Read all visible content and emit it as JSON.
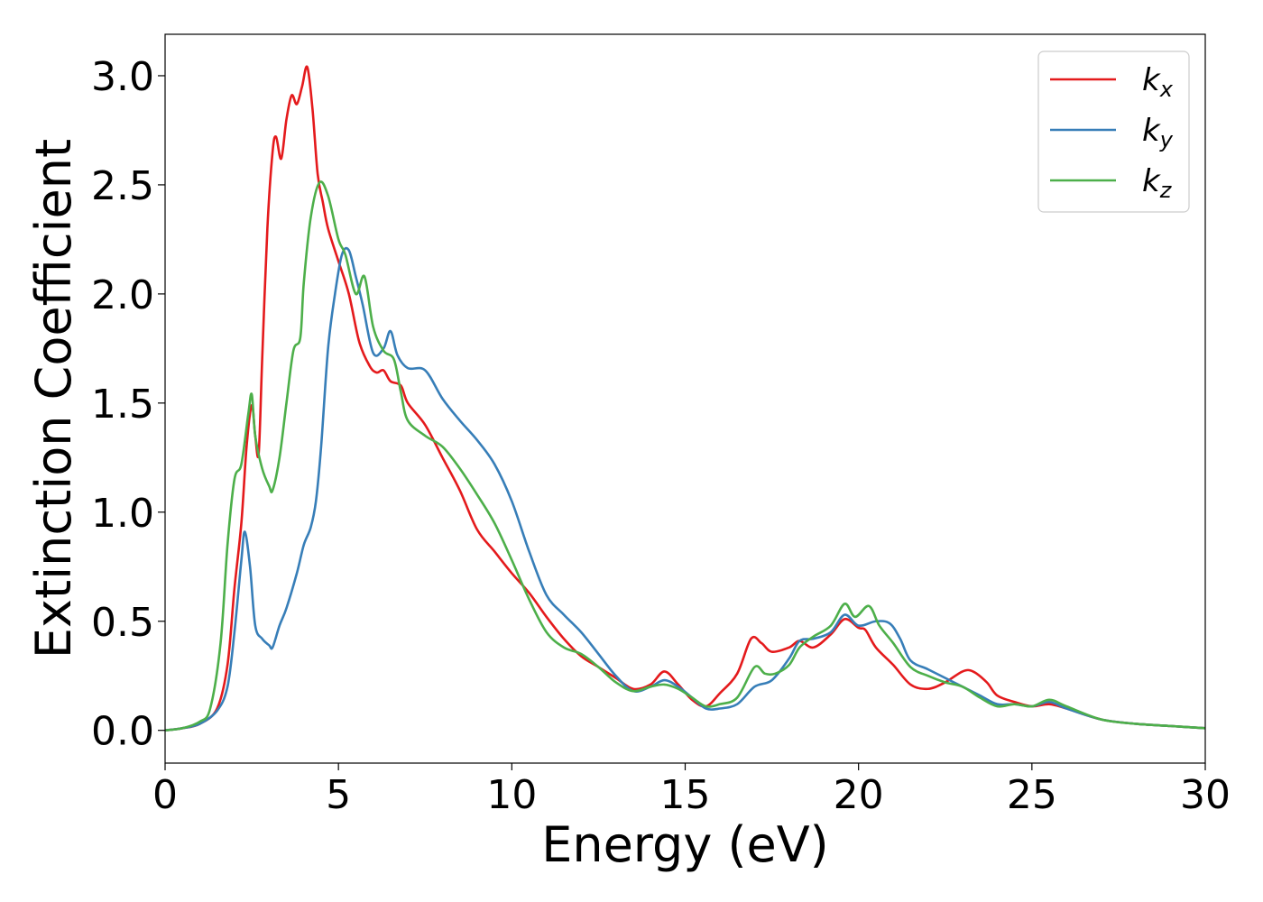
{
  "chart_data": {
    "type": "line",
    "title": "",
    "xlabel": "Energy (eV)",
    "ylabel": "Extinction Coefficient",
    "xlim": [
      0,
      30
    ],
    "ylim": [
      -0.15,
      3.19
    ],
    "xticks": [
      0,
      5,
      10,
      15,
      20,
      25,
      30
    ],
    "xtick_labels": [
      "0",
      "5",
      "10",
      "15",
      "20",
      "25",
      "30"
    ],
    "yticks": [
      0.0,
      0.5,
      1.0,
      1.5,
      2.0,
      2.5,
      3.0
    ],
    "ytick_labels": [
      "0.0",
      "0.5",
      "1.0",
      "1.5",
      "2.0",
      "2.5",
      "3.0"
    ],
    "grid": false,
    "legend_position": "top-right",
    "series": [
      {
        "name": "k_x",
        "base": "k",
        "sub": "x",
        "color": "#e41a1c",
        "points": [
          [
            0,
            0.0
          ],
          [
            0.5,
            0.01
          ],
          [
            1.0,
            0.03
          ],
          [
            1.5,
            0.1
          ],
          [
            1.8,
            0.3
          ],
          [
            2.0,
            0.65
          ],
          [
            2.2,
            0.95
          ],
          [
            2.35,
            1.3
          ],
          [
            2.5,
            1.49
          ],
          [
            2.6,
            1.35
          ],
          [
            2.7,
            1.27
          ],
          [
            2.8,
            1.7
          ],
          [
            2.95,
            2.3
          ],
          [
            3.1,
            2.65
          ],
          [
            3.2,
            2.72
          ],
          [
            3.35,
            2.62
          ],
          [
            3.5,
            2.8
          ],
          [
            3.65,
            2.91
          ],
          [
            3.8,
            2.87
          ],
          [
            3.95,
            2.95
          ],
          [
            4.1,
            3.04
          ],
          [
            4.25,
            2.85
          ],
          [
            4.4,
            2.55
          ],
          [
            4.55,
            2.42
          ],
          [
            4.7,
            2.3
          ],
          [
            5.0,
            2.15
          ],
          [
            5.3,
            2.0
          ],
          [
            5.6,
            1.78
          ],
          [
            5.9,
            1.67
          ],
          [
            6.1,
            1.64
          ],
          [
            6.3,
            1.65
          ],
          [
            6.5,
            1.6
          ],
          [
            6.8,
            1.58
          ],
          [
            7.0,
            1.5
          ],
          [
            7.5,
            1.4
          ],
          [
            8.0,
            1.25
          ],
          [
            8.5,
            1.1
          ],
          [
            9.0,
            0.92
          ],
          [
            9.5,
            0.82
          ],
          [
            10.0,
            0.72
          ],
          [
            10.5,
            0.63
          ],
          [
            11.0,
            0.52
          ],
          [
            11.5,
            0.42
          ],
          [
            12.0,
            0.34
          ],
          [
            12.5,
            0.29
          ],
          [
            13.0,
            0.24
          ],
          [
            13.5,
            0.19
          ],
          [
            14.0,
            0.21
          ],
          [
            14.4,
            0.27
          ],
          [
            14.8,
            0.21
          ],
          [
            15.2,
            0.14
          ],
          [
            15.6,
            0.11
          ],
          [
            16.0,
            0.17
          ],
          [
            16.5,
            0.26
          ],
          [
            16.9,
            0.42
          ],
          [
            17.2,
            0.4
          ],
          [
            17.5,
            0.36
          ],
          [
            18.0,
            0.38
          ],
          [
            18.3,
            0.41
          ],
          [
            18.7,
            0.38
          ],
          [
            19.2,
            0.44
          ],
          [
            19.6,
            0.51
          ],
          [
            20.0,
            0.47
          ],
          [
            20.2,
            0.46
          ],
          [
            20.5,
            0.38
          ],
          [
            21.0,
            0.3
          ],
          [
            21.5,
            0.21
          ],
          [
            22.0,
            0.19
          ],
          [
            22.5,
            0.22
          ],
          [
            23.0,
            0.27
          ],
          [
            23.3,
            0.27
          ],
          [
            23.7,
            0.22
          ],
          [
            24.0,
            0.16
          ],
          [
            24.5,
            0.13
          ],
          [
            25.0,
            0.11
          ],
          [
            25.5,
            0.12
          ],
          [
            26.0,
            0.1
          ],
          [
            27.0,
            0.05
          ],
          [
            28.0,
            0.03
          ],
          [
            29.0,
            0.02
          ],
          [
            30.0,
            0.01
          ]
        ]
      },
      {
        "name": "k_y",
        "base": "k",
        "sub": "y",
        "color": "#377eb8",
        "points": [
          [
            0,
            0.0
          ],
          [
            0.5,
            0.01
          ],
          [
            1.0,
            0.03
          ],
          [
            1.5,
            0.09
          ],
          [
            1.8,
            0.2
          ],
          [
            2.0,
            0.45
          ],
          [
            2.2,
            0.78
          ],
          [
            2.3,
            0.91
          ],
          [
            2.45,
            0.75
          ],
          [
            2.6,
            0.48
          ],
          [
            2.8,
            0.42
          ],
          [
            3.0,
            0.39
          ],
          [
            3.1,
            0.38
          ],
          [
            3.3,
            0.48
          ],
          [
            3.5,
            0.56
          ],
          [
            3.8,
            0.72
          ],
          [
            4.0,
            0.85
          ],
          [
            4.2,
            0.93
          ],
          [
            4.35,
            1.05
          ],
          [
            4.5,
            1.3
          ],
          [
            4.7,
            1.75
          ],
          [
            4.9,
            2.0
          ],
          [
            5.1,
            2.18
          ],
          [
            5.3,
            2.2
          ],
          [
            5.5,
            2.08
          ],
          [
            5.7,
            1.95
          ],
          [
            6.0,
            1.73
          ],
          [
            6.3,
            1.75
          ],
          [
            6.5,
            1.83
          ],
          [
            6.7,
            1.72
          ],
          [
            7.0,
            1.66
          ],
          [
            7.5,
            1.65
          ],
          [
            8.0,
            1.52
          ],
          [
            8.5,
            1.42
          ],
          [
            9.0,
            1.33
          ],
          [
            9.5,
            1.22
          ],
          [
            10.0,
            1.05
          ],
          [
            10.5,
            0.82
          ],
          [
            11.0,
            0.62
          ],
          [
            11.5,
            0.53
          ],
          [
            12.0,
            0.45
          ],
          [
            12.5,
            0.35
          ],
          [
            13.0,
            0.25
          ],
          [
            13.5,
            0.18
          ],
          [
            14.0,
            0.2
          ],
          [
            14.4,
            0.23
          ],
          [
            14.8,
            0.2
          ],
          [
            15.2,
            0.15
          ],
          [
            15.6,
            0.1
          ],
          [
            16.0,
            0.1
          ],
          [
            16.5,
            0.12
          ],
          [
            17.0,
            0.2
          ],
          [
            17.5,
            0.23
          ],
          [
            18.0,
            0.33
          ],
          [
            18.3,
            0.41
          ],
          [
            18.7,
            0.42
          ],
          [
            19.2,
            0.45
          ],
          [
            19.6,
            0.53
          ],
          [
            20.0,
            0.48
          ],
          [
            20.5,
            0.5
          ],
          [
            20.9,
            0.49
          ],
          [
            21.2,
            0.42
          ],
          [
            21.5,
            0.32
          ],
          [
            22.0,
            0.28
          ],
          [
            22.5,
            0.24
          ],
          [
            23.0,
            0.2
          ],
          [
            23.5,
            0.16
          ],
          [
            24.0,
            0.12
          ],
          [
            24.5,
            0.12
          ],
          [
            25.0,
            0.11
          ],
          [
            25.5,
            0.13
          ],
          [
            26.0,
            0.1
          ],
          [
            27.0,
            0.05
          ],
          [
            28.0,
            0.03
          ],
          [
            29.0,
            0.02
          ],
          [
            30.0,
            0.01
          ]
        ]
      },
      {
        "name": "k_z",
        "base": "k",
        "sub": "z",
        "color": "#4daf4a",
        "points": [
          [
            0,
            0.0
          ],
          [
            0.5,
            0.01
          ],
          [
            1.0,
            0.04
          ],
          [
            1.3,
            0.1
          ],
          [
            1.6,
            0.4
          ],
          [
            1.8,
            0.85
          ],
          [
            2.0,
            1.15
          ],
          [
            2.2,
            1.22
          ],
          [
            2.4,
            1.45
          ],
          [
            2.5,
            1.54
          ],
          [
            2.6,
            1.35
          ],
          [
            2.8,
            1.2
          ],
          [
            3.0,
            1.12
          ],
          [
            3.1,
            1.1
          ],
          [
            3.3,
            1.25
          ],
          [
            3.5,
            1.5
          ],
          [
            3.7,
            1.74
          ],
          [
            3.9,
            1.8
          ],
          [
            4.0,
            2.05
          ],
          [
            4.2,
            2.35
          ],
          [
            4.45,
            2.51
          ],
          [
            4.7,
            2.45
          ],
          [
            5.0,
            2.25
          ],
          [
            5.2,
            2.18
          ],
          [
            5.5,
            2.0
          ],
          [
            5.75,
            2.08
          ],
          [
            6.0,
            1.85
          ],
          [
            6.3,
            1.74
          ],
          [
            6.6,
            1.7
          ],
          [
            6.8,
            1.55
          ],
          [
            7.0,
            1.42
          ],
          [
            7.5,
            1.35
          ],
          [
            8.0,
            1.3
          ],
          [
            8.5,
            1.2
          ],
          [
            9.0,
            1.08
          ],
          [
            9.5,
            0.95
          ],
          [
            10.0,
            0.78
          ],
          [
            10.5,
            0.6
          ],
          [
            11.0,
            0.45
          ],
          [
            11.5,
            0.38
          ],
          [
            12.0,
            0.35
          ],
          [
            12.5,
            0.29
          ],
          [
            13.0,
            0.22
          ],
          [
            13.5,
            0.18
          ],
          [
            14.0,
            0.2
          ],
          [
            14.4,
            0.21
          ],
          [
            14.8,
            0.19
          ],
          [
            15.2,
            0.15
          ],
          [
            15.6,
            0.11
          ],
          [
            16.0,
            0.12
          ],
          [
            16.5,
            0.15
          ],
          [
            17.0,
            0.29
          ],
          [
            17.3,
            0.26
          ],
          [
            17.6,
            0.26
          ],
          [
            18.0,
            0.3
          ],
          [
            18.3,
            0.38
          ],
          [
            18.7,
            0.43
          ],
          [
            19.2,
            0.48
          ],
          [
            19.6,
            0.58
          ],
          [
            19.9,
            0.52
          ],
          [
            20.3,
            0.57
          ],
          [
            20.6,
            0.48
          ],
          [
            21.0,
            0.4
          ],
          [
            21.5,
            0.29
          ],
          [
            22.0,
            0.25
          ],
          [
            22.5,
            0.22
          ],
          [
            23.0,
            0.2
          ],
          [
            23.5,
            0.15
          ],
          [
            24.0,
            0.11
          ],
          [
            24.5,
            0.12
          ],
          [
            25.0,
            0.11
          ],
          [
            25.5,
            0.14
          ],
          [
            26.0,
            0.11
          ],
          [
            27.0,
            0.05
          ],
          [
            28.0,
            0.03
          ],
          [
            29.0,
            0.02
          ],
          [
            30.0,
            0.01
          ]
        ]
      }
    ]
  }
}
